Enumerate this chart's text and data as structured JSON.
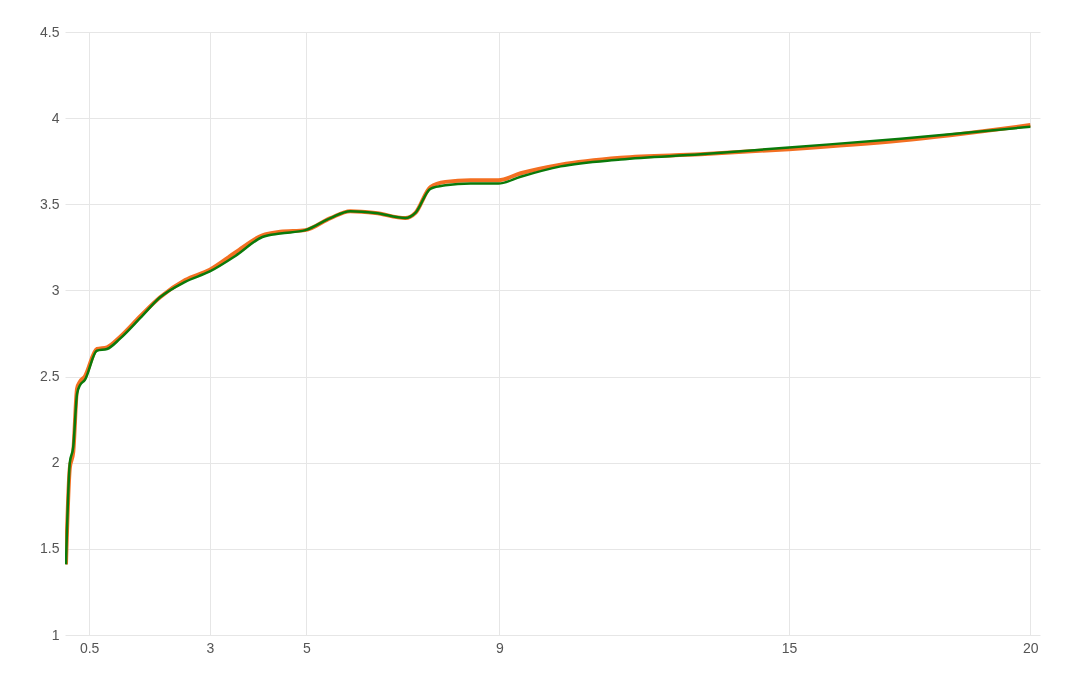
{
  "chart_data": {
    "type": "line",
    "xlim": [
      0,
      20.2
    ],
    "xticks": [
      0.5,
      3,
      5,
      9,
      15,
      20
    ],
    "ylim": [
      1,
      4.5
    ],
    "yticks": [
      1,
      1.5,
      2,
      2.5,
      3,
      3.5,
      4,
      4.5
    ],
    "grid": true,
    "line_style": "solid",
    "series": [
      {
        "color": "#f36f21",
        "x": [
          0.02,
          0.1,
          0.17,
          0.25,
          0.31,
          0.41,
          0.66,
          0.87,
          1.14,
          1.56,
          1.97,
          2.49,
          3.0,
          3.53,
          4.09,
          4.46,
          4.98,
          5.5,
          5.91,
          6.43,
          7.05,
          7.26,
          7.57,
          7.88,
          8.4,
          8.98,
          9.44,
          10.27,
          11.51,
          13.17,
          15.0,
          17.32,
          20.0
        ],
        "values": [
          1.41,
          1.97,
          2.06,
          2.43,
          2.47,
          2.5,
          2.66,
          2.67,
          2.73,
          2.85,
          2.96,
          3.06,
          3.12,
          3.22,
          3.32,
          3.34,
          3.35,
          3.42,
          3.46,
          3.45,
          3.42,
          3.45,
          3.6,
          3.63,
          3.64,
          3.64,
          3.68,
          3.73,
          3.77,
          3.79,
          3.82,
          3.87,
          3.96
        ]
      },
      {
        "color": "#0a7a0a",
        "x": [
          0.02,
          0.1,
          0.17,
          0.25,
          0.31,
          0.41,
          0.66,
          0.87,
          1.14,
          1.56,
          1.97,
          2.49,
          3.0,
          3.53,
          4.09,
          4.46,
          4.98,
          5.5,
          5.91,
          6.43,
          7.05,
          7.26,
          7.57,
          7.88,
          8.4,
          8.98,
          9.44,
          10.27,
          11.51,
          13.17,
          15.0,
          17.32,
          20.0
        ],
        "values": [
          1.41,
          2.0,
          2.09,
          2.4,
          2.45,
          2.48,
          2.65,
          2.66,
          2.72,
          2.84,
          2.96,
          3.05,
          3.11,
          3.2,
          3.31,
          3.33,
          3.35,
          3.42,
          3.46,
          3.45,
          3.42,
          3.45,
          3.59,
          3.61,
          3.62,
          3.62,
          3.66,
          3.72,
          3.76,
          3.79,
          3.83,
          3.88,
          3.95
        ]
      }
    ]
  }
}
